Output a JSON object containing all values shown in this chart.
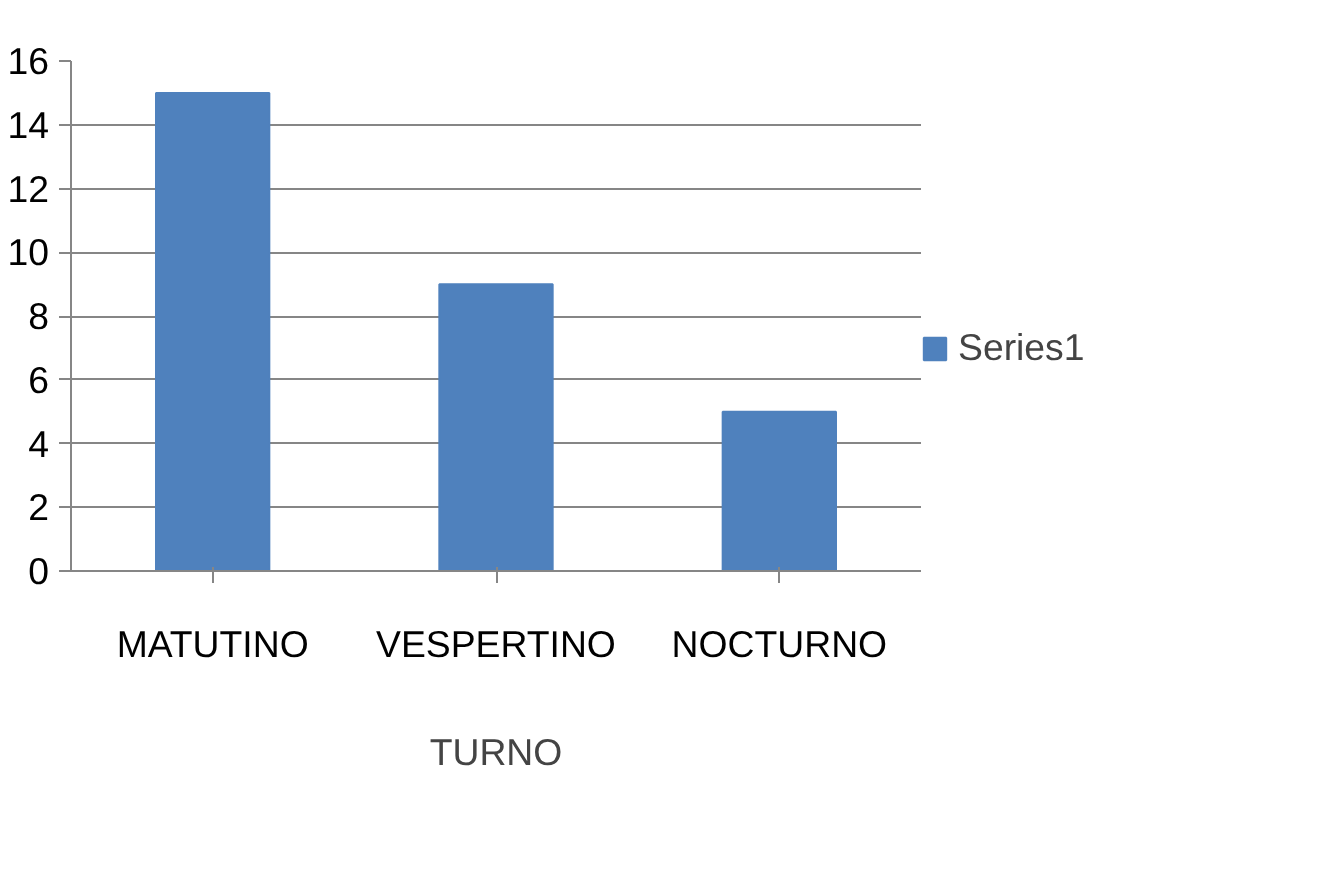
{
  "chart_data": {
    "type": "bar",
    "categories": [
      "MATUTINO",
      "VESPERTINO",
      "NOCTURNO"
    ],
    "xlabel": "TURNO",
    "series": [
      {
        "name": "Series1",
        "color": "#4f81bd",
        "values": [
          15,
          9,
          5
        ]
      }
    ],
    "ylim": [
      0,
      16
    ],
    "yticks": [
      0,
      2,
      4,
      6,
      8,
      10,
      12,
      14,
      16
    ],
    "grid": "y",
    "legend": "right"
  }
}
